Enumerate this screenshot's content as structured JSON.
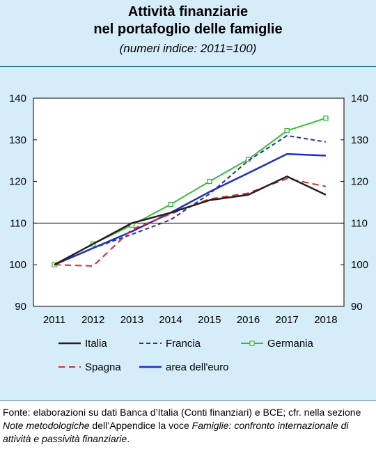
{
  "header": {
    "title_line1": "Attività finanziarie",
    "title_line2": "nel portafoglio delle famiglie",
    "subtitle": "(numeri indice: 2011=100)"
  },
  "source": {
    "part1": "Fonte: elaborazioni su dati Banca d’Italia (Conti finanziari) e BCE; cfr. nella sezione ",
    "italic1": "Note metodologiche",
    "part2": " dell’Appendice la voce ",
    "italic2": "Famiglie: confronto internazionale di attività e passività finanziarie",
    "part3": "."
  },
  "chart_data": {
    "type": "line",
    "title": "Attività finanziarie nel portafoglio delle famiglie",
    "subtitle": "(numeri indice: 2011=100)",
    "categories": [
      "2011",
      "2012",
      "2013",
      "2014",
      "2015",
      "2016",
      "2017",
      "2018"
    ],
    "ylim": [
      90,
      140
    ],
    "yticks": [
      90,
      100,
      110,
      120,
      130,
      140
    ],
    "reference_line": 110,
    "grid": false,
    "legend_position": "bottom",
    "series": [
      {
        "name": "Italia",
        "color": "#231f20",
        "style": "solid",
        "values": [
          100,
          105.0,
          110.0,
          112.5,
          115.5,
          116.8,
          121.2,
          116.8
        ]
      },
      {
        "name": "Francia",
        "color": "#1f2fbf",
        "style": "dashed",
        "values": [
          100,
          104.0,
          107.3,
          110.8,
          117.0,
          125.0,
          131.0,
          129.5
        ]
      },
      {
        "name": "Germania",
        "color": "#35c035",
        "style": "solid-marker",
        "values": [
          100,
          105.0,
          109.5,
          114.5,
          120.0,
          125.3,
          132.2,
          135.2
        ]
      },
      {
        "name": "Spagna",
        "color": "#e8262b",
        "style": "dashed",
        "values": [
          100,
          99.7,
          108.5,
          112.2,
          115.8,
          117.2,
          120.7,
          118.8
        ]
      },
      {
        "name": "area dell'euro",
        "color": "#1b2fcf",
        "style": "solid",
        "values": [
          100,
          104.0,
          108.0,
          112.5,
          117.5,
          122.0,
          126.6,
          126.2
        ]
      }
    ]
  }
}
